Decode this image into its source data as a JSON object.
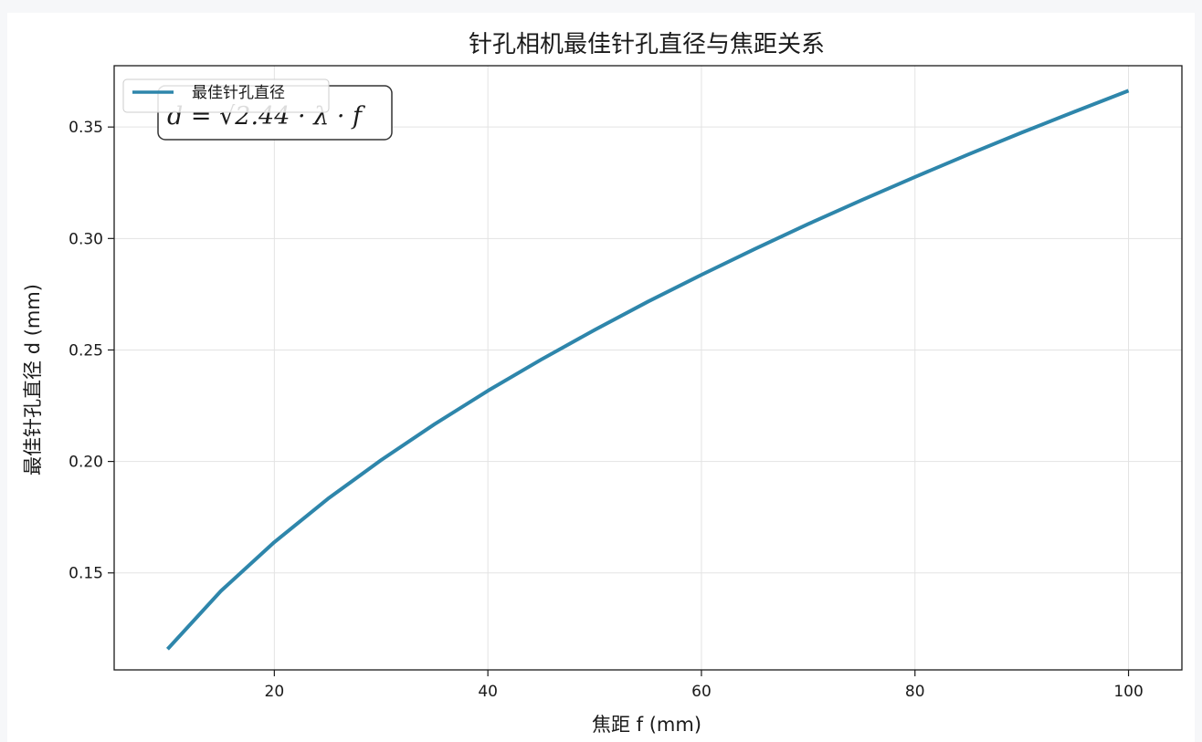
{
  "chart_data": {
    "type": "line",
    "title": "针孔相机最佳针孔直径与焦距关系",
    "xlabel": "焦距 f (mm)",
    "ylabel": "最佳针孔直径 d (mm)",
    "xlim": [
      5,
      105
    ],
    "ylim": [
      0.1065,
      0.3775
    ],
    "xticks": [
      20,
      40,
      60,
      80,
      100
    ],
    "yticks": [
      0.15,
      0.2,
      0.25,
      0.3,
      0.35
    ],
    "xtick_labels": [
      "20",
      "40",
      "60",
      "80",
      "100"
    ],
    "ytick_labels": [
      "0.15",
      "0.20",
      "0.25",
      "0.30",
      "0.35"
    ],
    "grid": true,
    "legend": {
      "placement": "top-left",
      "entries": [
        "最佳针孔直径"
      ]
    },
    "annotation": "d = √2.44 · λ · f",
    "series": [
      {
        "name": "最佳针孔直径",
        "color": "#2e86ab",
        "x": [
          10,
          15,
          20,
          25,
          30,
          35,
          40,
          45,
          50,
          55,
          60,
          65,
          70,
          75,
          80,
          85,
          90,
          95,
          100
        ],
        "y": [
          0.1158,
          0.1419,
          0.1638,
          0.1832,
          0.2006,
          0.2167,
          0.2317,
          0.2457,
          0.259,
          0.2717,
          0.2837,
          0.2953,
          0.3065,
          0.3172,
          0.3276,
          0.3377,
          0.3475,
          0.357,
          0.3663
        ]
      }
    ]
  }
}
